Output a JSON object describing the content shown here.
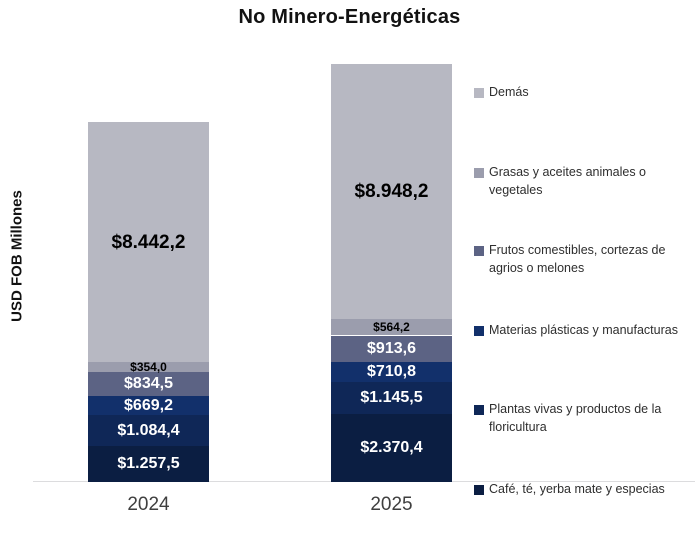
{
  "title": "No Minero-Energéticas",
  "chart_data": {
    "type": "bar",
    "stacked": true,
    "title": "No Minero-Energéticas",
    "ylabel": "USD FOB Millones",
    "xlabel": "",
    "grid": false,
    "legend_position": "right",
    "categories": [
      "2024",
      "2025"
    ],
    "series": [
      {
        "name": "Café, té, yerba mate y especias",
        "color": "#0b1e42",
        "label_color": "#ffffff",
        "label_size": "md",
        "values": [
          1257.5,
          2370.4
        ],
        "labels": [
          "$1.257,5",
          "$2.370,4"
        ]
      },
      {
        "name": "Plantas vivas y productos de la floricultura",
        "color": "#0f2757",
        "label_color": "#ffffff",
        "label_size": "md",
        "values": [
          1084.4,
          1145.5
        ],
        "labels": [
          "$1.084,4",
          "$1.145,5"
        ]
      },
      {
        "name": "Materias plásticas y manufacturas",
        "color": "#12306b",
        "label_color": "#ffffff",
        "label_size": "md",
        "values": [
          669.2,
          710.8
        ],
        "labels": [
          "$669,2",
          "$710,8"
        ]
      },
      {
        "name": "Frutos comestibles, cortezas de agrios o melones",
        "color": "#5c6384",
        "label_color": "#ffffff",
        "label_size": "md",
        "values": [
          834.5,
          913.6
        ],
        "labels": [
          "$834,5",
          "$913,6"
        ]
      },
      {
        "name": "Grasas y aceites animales o vegetales",
        "color": "#9b9dad",
        "label_color": "#000000",
        "label_size": "sm",
        "values": [
          354.0,
          564.2
        ],
        "labels": [
          "$354,0",
          "$564,2"
        ]
      },
      {
        "name": "Demás",
        "color": "#b7b8c2",
        "label_color": "#000000",
        "label_size": "xl",
        "values": [
          8442.2,
          8948.2
        ],
        "labels": [
          "$8.442,2",
          "$8.948,2"
        ]
      }
    ]
  }
}
